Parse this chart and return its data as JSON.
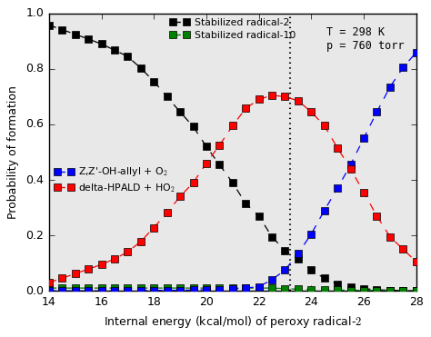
{
  "x": [
    14,
    14.5,
    15,
    15.5,
    16,
    16.5,
    17,
    17.5,
    18,
    18.5,
    19,
    19.5,
    20,
    20.5,
    21,
    21.5,
    22,
    22.5,
    23,
    23.5,
    24,
    24.5,
    25,
    25.5,
    26,
    26.5,
    27,
    27.5,
    28
  ],
  "stabilized_radical2": [
    0.958,
    0.942,
    0.925,
    0.908,
    0.89,
    0.868,
    0.845,
    0.803,
    0.755,
    0.7,
    0.645,
    0.592,
    0.52,
    0.455,
    0.39,
    0.315,
    0.27,
    0.195,
    0.145,
    0.115,
    0.075,
    0.045,
    0.025,
    0.015,
    0.008,
    0.004,
    0.002,
    0.001,
    0.0
  ],
  "stabilized_radical10": [
    0.01,
    0.01,
    0.01,
    0.01,
    0.01,
    0.01,
    0.01,
    0.01,
    0.01,
    0.01,
    0.01,
    0.01,
    0.01,
    0.01,
    0.01,
    0.01,
    0.01,
    0.01,
    0.008,
    0.006,
    0.005,
    0.004,
    0.003,
    0.002,
    0.002,
    0.001,
    0.001,
    0.001,
    0.0
  ],
  "zzoh_allyl_o2": [
    0.0,
    0.0,
    0.0,
    0.0,
    0.0,
    0.0,
    0.001,
    0.001,
    0.001,
    0.002,
    0.002,
    0.003,
    0.004,
    0.005,
    0.007,
    0.01,
    0.015,
    0.04,
    0.075,
    0.135,
    0.205,
    0.29,
    0.37,
    0.455,
    0.55,
    0.645,
    0.735,
    0.805,
    0.86
  ],
  "delta_hpald_ho2": [
    0.03,
    0.045,
    0.062,
    0.078,
    0.095,
    0.115,
    0.14,
    0.178,
    0.228,
    0.282,
    0.34,
    0.39,
    0.46,
    0.525,
    0.595,
    0.658,
    0.69,
    0.705,
    0.7,
    0.685,
    0.645,
    0.595,
    0.515,
    0.44,
    0.355,
    0.27,
    0.195,
    0.15,
    0.105
  ],
  "vline_x": 23.2,
  "xlabel_base": "Internal energy (kcal/mol) of peroxy radical-",
  "xlabel_bold": "2",
  "ylabel": "Probability of formation",
  "annotation": "T = 298 K\np = 760 torr",
  "legend_labels": [
    "Stabilized radical-2",
    "Stabilized radical-10",
    "Z,Z'-OH-allyl + O$_2$",
    "delta-HPALD + HO$_2$"
  ],
  "xlim": [
    14,
    28
  ],
  "ylim": [
    0.0,
    1.0
  ],
  "xticks": [
    14,
    16,
    18,
    20,
    22,
    24,
    26,
    28
  ],
  "yticks": [
    0.0,
    0.2,
    0.4,
    0.6,
    0.8,
    1.0
  ],
  "figsize": [
    4.74,
    3.71
  ],
  "dpi": 100,
  "bg_color": "#e8e8e8"
}
